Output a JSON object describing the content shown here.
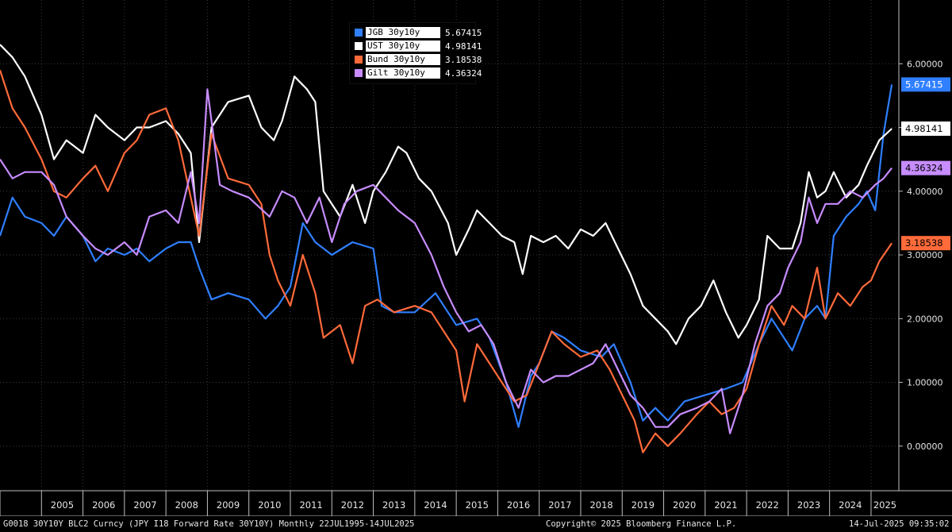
{
  "chart_data": {
    "type": "line",
    "ylim": [
      -0.7,
      7.0
    ],
    "y_ticks": [
      "0.00000",
      "1.00000",
      "2.00000",
      "3.00000",
      "4.00000",
      "5.00000",
      "6.00000"
    ],
    "y_tick_values": [
      0,
      1,
      2,
      3,
      4,
      5,
      6
    ],
    "x_start": 2004.0,
    "x_end": 2025.67,
    "years": [
      "2005",
      "2006",
      "2007",
      "2008",
      "2009",
      "2010",
      "2011",
      "2012",
      "2013",
      "2014",
      "2015",
      "2016",
      "2017",
      "2018",
      "2019",
      "2020",
      "2021",
      "2022",
      "2023",
      "2024",
      "2025"
    ],
    "grid": true,
    "legend_position": "top-center",
    "series": [
      {
        "name": "JGB 30y10y",
        "last_label": "5.67415",
        "color": "#2f7fff",
        "label_text_color": "#ffffff",
        "points": [
          [
            2004.0,
            3.3
          ],
          [
            2004.3,
            3.9
          ],
          [
            2004.6,
            3.6
          ],
          [
            2005.0,
            3.5
          ],
          [
            2005.3,
            3.3
          ],
          [
            2005.6,
            3.6
          ],
          [
            2006.0,
            3.3
          ],
          [
            2006.3,
            2.9
          ],
          [
            2006.6,
            3.1
          ],
          [
            2007.0,
            3.0
          ],
          [
            2007.3,
            3.1
          ],
          [
            2007.6,
            2.9
          ],
          [
            2008.0,
            3.1
          ],
          [
            2008.3,
            3.2
          ],
          [
            2008.6,
            3.2
          ],
          [
            2008.8,
            2.8
          ],
          [
            2009.1,
            2.3
          ],
          [
            2009.5,
            2.4
          ],
          [
            2010.0,
            2.3
          ],
          [
            2010.4,
            2.0
          ],
          [
            2010.7,
            2.2
          ],
          [
            2011.0,
            2.5
          ],
          [
            2011.3,
            3.5
          ],
          [
            2011.6,
            3.2
          ],
          [
            2012.0,
            3.0
          ],
          [
            2012.5,
            3.2
          ],
          [
            2013.0,
            3.1
          ],
          [
            2013.2,
            2.2
          ],
          [
            2013.5,
            2.1
          ],
          [
            2014.0,
            2.1
          ],
          [
            2014.5,
            2.4
          ],
          [
            2015.0,
            1.9
          ],
          [
            2015.5,
            2.0
          ],
          [
            2015.8,
            1.7
          ],
          [
            2016.2,
            1.0
          ],
          [
            2016.5,
            0.3
          ],
          [
            2016.8,
            1.1
          ],
          [
            2017.0,
            1.3
          ],
          [
            2017.3,
            1.8
          ],
          [
            2017.6,
            1.7
          ],
          [
            2018.0,
            1.5
          ],
          [
            2018.5,
            1.4
          ],
          [
            2018.8,
            1.6
          ],
          [
            2019.2,
            1.0
          ],
          [
            2019.5,
            0.4
          ],
          [
            2019.8,
            0.6
          ],
          [
            2020.1,
            0.4
          ],
          [
            2020.5,
            0.7
          ],
          [
            2021.0,
            0.8
          ],
          [
            2021.5,
            0.9
          ],
          [
            2021.9,
            1.0
          ],
          [
            2022.3,
            1.6
          ],
          [
            2022.6,
            2.0
          ],
          [
            2022.9,
            1.7
          ],
          [
            2023.1,
            1.5
          ],
          [
            2023.4,
            2.0
          ],
          [
            2023.7,
            2.2
          ],
          [
            2023.9,
            2.0
          ],
          [
            2024.1,
            3.3
          ],
          [
            2024.4,
            3.6
          ],
          [
            2024.7,
            3.8
          ],
          [
            2024.9,
            4.0
          ],
          [
            2025.1,
            3.7
          ],
          [
            2025.3,
            4.9
          ],
          [
            2025.5,
            5.67415
          ]
        ]
      },
      {
        "name": "UST 30y10y",
        "last_label": "4.98141",
        "color": "#ffffff",
        "label_text_color": "#000000",
        "points": [
          [
            2004.0,
            6.3
          ],
          [
            2004.3,
            6.1
          ],
          [
            2004.6,
            5.8
          ],
          [
            2005.0,
            5.2
          ],
          [
            2005.3,
            4.5
          ],
          [
            2005.6,
            4.8
          ],
          [
            2006.0,
            4.6
          ],
          [
            2006.3,
            5.2
          ],
          [
            2006.6,
            5.0
          ],
          [
            2007.0,
            4.8
          ],
          [
            2007.3,
            5.0
          ],
          [
            2007.6,
            5.0
          ],
          [
            2008.0,
            5.1
          ],
          [
            2008.3,
            4.9
          ],
          [
            2008.6,
            4.6
          ],
          [
            2008.8,
            3.2
          ],
          [
            2009.1,
            5.0
          ],
          [
            2009.5,
            5.4
          ],
          [
            2010.0,
            5.5
          ],
          [
            2010.3,
            5.0
          ],
          [
            2010.6,
            4.8
          ],
          [
            2010.8,
            5.1
          ],
          [
            2011.1,
            5.8
          ],
          [
            2011.4,
            5.6
          ],
          [
            2011.6,
            5.4
          ],
          [
            2011.8,
            4.0
          ],
          [
            2012.2,
            3.6
          ],
          [
            2012.5,
            4.1
          ],
          [
            2012.8,
            3.5
          ],
          [
            2013.0,
            4.0
          ],
          [
            2013.3,
            4.3
          ],
          [
            2013.6,
            4.7
          ],
          [
            2013.8,
            4.6
          ],
          [
            2014.1,
            4.2
          ],
          [
            2014.4,
            4.0
          ],
          [
            2014.8,
            3.5
          ],
          [
            2015.0,
            3.0
          ],
          [
            2015.3,
            3.4
          ],
          [
            2015.5,
            3.7
          ],
          [
            2015.8,
            3.5
          ],
          [
            2016.1,
            3.3
          ],
          [
            2016.4,
            3.2
          ],
          [
            2016.6,
            2.7
          ],
          [
            2016.8,
            3.3
          ],
          [
            2017.1,
            3.2
          ],
          [
            2017.4,
            3.3
          ],
          [
            2017.7,
            3.1
          ],
          [
            2018.0,
            3.4
          ],
          [
            2018.3,
            3.3
          ],
          [
            2018.6,
            3.5
          ],
          [
            2018.9,
            3.1
          ],
          [
            2019.2,
            2.7
          ],
          [
            2019.5,
            2.2
          ],
          [
            2019.8,
            2.0
          ],
          [
            2020.1,
            1.8
          ],
          [
            2020.3,
            1.6
          ],
          [
            2020.6,
            2.0
          ],
          [
            2020.9,
            2.2
          ],
          [
            2021.2,
            2.6
          ],
          [
            2021.5,
            2.1
          ],
          [
            2021.8,
            1.7
          ],
          [
            2022.0,
            1.9
          ],
          [
            2022.3,
            2.3
          ],
          [
            2022.5,
            3.3
          ],
          [
            2022.8,
            3.1
          ],
          [
            2023.1,
            3.1
          ],
          [
            2023.3,
            3.5
          ],
          [
            2023.5,
            4.3
          ],
          [
            2023.7,
            3.9
          ],
          [
            2023.9,
            4.0
          ],
          [
            2024.1,
            4.3
          ],
          [
            2024.4,
            3.9
          ],
          [
            2024.7,
            4.1
          ],
          [
            2024.9,
            4.4
          ],
          [
            2025.2,
            4.8
          ],
          [
            2025.5,
            4.98141
          ]
        ]
      },
      {
        "name": "Bund 30y10y",
        "last_label": "3.18538",
        "color": "#ff6a3a",
        "label_text_color": "#000000",
        "points": [
          [
            2004.0,
            5.9
          ],
          [
            2004.3,
            5.3
          ],
          [
            2004.6,
            5.0
          ],
          [
            2005.0,
            4.5
          ],
          [
            2005.3,
            4.0
          ],
          [
            2005.6,
            3.9
          ],
          [
            2006.0,
            4.2
          ],
          [
            2006.3,
            4.4
          ],
          [
            2006.6,
            4.0
          ],
          [
            2007.0,
            4.6
          ],
          [
            2007.3,
            4.8
          ],
          [
            2007.6,
            5.2
          ],
          [
            2008.0,
            5.3
          ],
          [
            2008.3,
            4.8
          ],
          [
            2008.6,
            3.9
          ],
          [
            2008.8,
            3.3
          ],
          [
            2009.1,
            4.9
          ],
          [
            2009.5,
            4.2
          ],
          [
            2010.0,
            4.1
          ],
          [
            2010.3,
            3.8
          ],
          [
            2010.5,
            3.0
          ],
          [
            2010.7,
            2.6
          ],
          [
            2011.0,
            2.2
          ],
          [
            2011.3,
            3.0
          ],
          [
            2011.6,
            2.4
          ],
          [
            2011.8,
            1.7
          ],
          [
            2012.2,
            1.9
          ],
          [
            2012.5,
            1.3
          ],
          [
            2012.8,
            2.2
          ],
          [
            2013.1,
            2.3
          ],
          [
            2013.5,
            2.1
          ],
          [
            2014.0,
            2.2
          ],
          [
            2014.4,
            2.1
          ],
          [
            2014.7,
            1.8
          ],
          [
            2015.0,
            1.5
          ],
          [
            2015.2,
            0.7
          ],
          [
            2015.5,
            1.6
          ],
          [
            2015.8,
            1.3
          ],
          [
            2016.1,
            1.0
          ],
          [
            2016.4,
            0.7
          ],
          [
            2016.7,
            0.8
          ],
          [
            2017.0,
            1.3
          ],
          [
            2017.3,
            1.8
          ],
          [
            2017.6,
            1.6
          ],
          [
            2018.0,
            1.4
          ],
          [
            2018.4,
            1.5
          ],
          [
            2018.7,
            1.2
          ],
          [
            2019.0,
            0.8
          ],
          [
            2019.3,
            0.4
          ],
          [
            2019.5,
            -0.1
          ],
          [
            2019.8,
            0.2
          ],
          [
            2020.1,
            0.0
          ],
          [
            2020.4,
            0.2
          ],
          [
            2020.8,
            0.5
          ],
          [
            2021.1,
            0.7
          ],
          [
            2021.4,
            0.5
          ],
          [
            2021.7,
            0.6
          ],
          [
            2022.0,
            0.9
          ],
          [
            2022.3,
            1.6
          ],
          [
            2022.6,
            2.2
          ],
          [
            2022.9,
            1.9
          ],
          [
            2023.1,
            2.2
          ],
          [
            2023.4,
            2.0
          ],
          [
            2023.7,
            2.8
          ],
          [
            2023.9,
            2.0
          ],
          [
            2024.2,
            2.4
          ],
          [
            2024.5,
            2.2
          ],
          [
            2024.8,
            2.5
          ],
          [
            2025.0,
            2.6
          ],
          [
            2025.2,
            2.9
          ],
          [
            2025.5,
            3.18538
          ]
        ]
      },
      {
        "name": "Gilt 30y10y",
        "last_label": "4.36324",
        "color": "#c78cff",
        "label_text_color": "#000000",
        "points": [
          [
            2004.0,
            4.5
          ],
          [
            2004.3,
            4.2
          ],
          [
            2004.6,
            4.3
          ],
          [
            2005.0,
            4.3
          ],
          [
            2005.3,
            4.1
          ],
          [
            2005.6,
            3.6
          ],
          [
            2006.0,
            3.3
          ],
          [
            2006.3,
            3.1
          ],
          [
            2006.6,
            3.0
          ],
          [
            2007.0,
            3.2
          ],
          [
            2007.3,
            3.0
          ],
          [
            2007.6,
            3.6
          ],
          [
            2008.0,
            3.7
          ],
          [
            2008.3,
            3.5
          ],
          [
            2008.6,
            4.3
          ],
          [
            2008.8,
            3.5
          ],
          [
            2009.0,
            5.6
          ],
          [
            2009.3,
            4.1
          ],
          [
            2009.6,
            4.0
          ],
          [
            2010.0,
            3.9
          ],
          [
            2010.5,
            3.6
          ],
          [
            2010.8,
            4.0
          ],
          [
            2011.1,
            3.9
          ],
          [
            2011.4,
            3.5
          ],
          [
            2011.7,
            3.9
          ],
          [
            2012.0,
            3.2
          ],
          [
            2012.3,
            3.8
          ],
          [
            2012.6,
            4.0
          ],
          [
            2013.0,
            4.1
          ],
          [
            2013.3,
            3.9
          ],
          [
            2013.6,
            3.7
          ],
          [
            2014.0,
            3.5
          ],
          [
            2014.4,
            3.0
          ],
          [
            2014.7,
            2.5
          ],
          [
            2015.0,
            2.1
          ],
          [
            2015.3,
            1.8
          ],
          [
            2015.6,
            1.9
          ],
          [
            2015.9,
            1.6
          ],
          [
            2016.2,
            1.0
          ],
          [
            2016.5,
            0.6
          ],
          [
            2016.8,
            1.2
          ],
          [
            2017.1,
            1.0
          ],
          [
            2017.4,
            1.1
          ],
          [
            2017.7,
            1.1
          ],
          [
            2018.0,
            1.2
          ],
          [
            2018.3,
            1.3
          ],
          [
            2018.6,
            1.6
          ],
          [
            2018.9,
            1.2
          ],
          [
            2019.2,
            0.8
          ],
          [
            2019.5,
            0.6
          ],
          [
            2019.8,
            0.3
          ],
          [
            2020.1,
            0.3
          ],
          [
            2020.4,
            0.5
          ],
          [
            2020.8,
            0.6
          ],
          [
            2021.1,
            0.7
          ],
          [
            2021.4,
            0.9
          ],
          [
            2021.6,
            0.2
          ],
          [
            2021.9,
            0.8
          ],
          [
            2022.2,
            1.6
          ],
          [
            2022.5,
            2.2
          ],
          [
            2022.8,
            2.4
          ],
          [
            2023.0,
            2.8
          ],
          [
            2023.3,
            3.2
          ],
          [
            2023.5,
            3.9
          ],
          [
            2023.7,
            3.5
          ],
          [
            2023.9,
            3.8
          ],
          [
            2024.2,
            3.8
          ],
          [
            2024.5,
            4.0
          ],
          [
            2024.8,
            3.9
          ],
          [
            2025.1,
            4.1
          ],
          [
            2025.3,
            4.2
          ],
          [
            2025.5,
            4.36324
          ]
        ]
      }
    ]
  },
  "footer": {
    "left": "G0018 30Y10Y BLC2 Curncy (JPY I18 Forward Rate 30Y10Y)  Monthly 22JUL1995-14JUL2025",
    "center": "Copyright© 2025 Bloomberg Finance L.P.",
    "right": "14-Jul-2025 09:35:02"
  }
}
